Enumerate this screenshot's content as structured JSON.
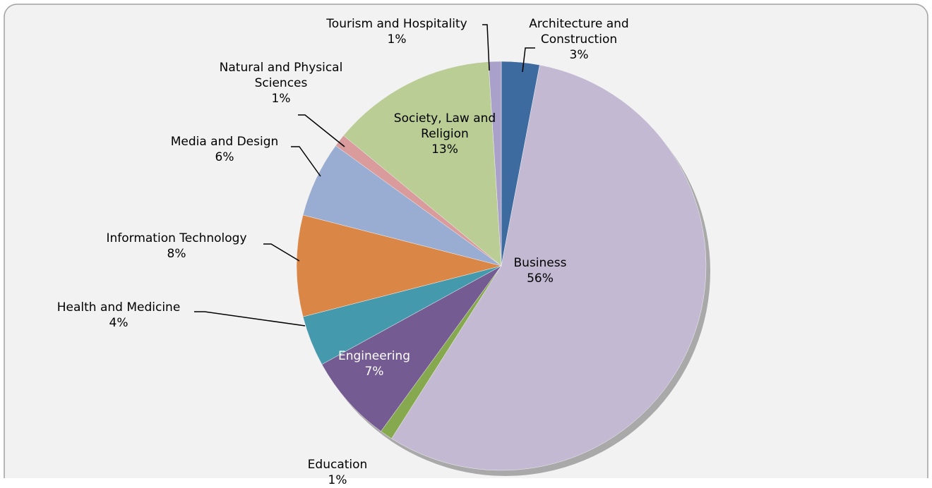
{
  "chart_data": {
    "type": "pie",
    "categories": [
      "Architecture and Construction",
      "Business",
      "Education",
      "Engineering",
      "Health and Medicine",
      "Information Technology",
      "Media and Design",
      "Natural and Physical Sciences",
      "Society, Law and Religion",
      "Tourism and Hospitality"
    ],
    "values": [
      3,
      56,
      1,
      7,
      4,
      8,
      6,
      1,
      13,
      1
    ],
    "value_labels": [
      "3%",
      "56%",
      "1%",
      "7%",
      "4%",
      "8%",
      "6%",
      "1%",
      "13%",
      "1%"
    ],
    "colors": [
      "#3e6b9f",
      "#c3b9d3",
      "#86a84e",
      "#745b92",
      "#4599ad",
      "#da8646",
      "#99acd1",
      "#d99b9b",
      "#bacd95",
      "#a9a1c9"
    ]
  }
}
